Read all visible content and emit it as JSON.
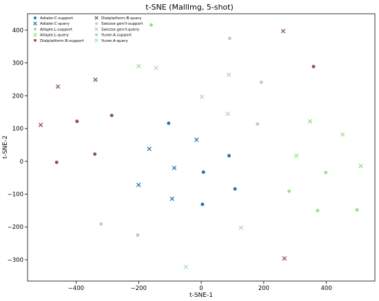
{
  "chart_data": {
    "type": "scatter",
    "title": "t-SNE (MallImg, 5-shot)",
    "xlabel": "t-SNE-1",
    "ylabel": "t-SNE-2",
    "xlim": [
      -555,
      555
    ],
    "ylim": [
      -365,
      450
    ],
    "xticks": [
      -400,
      -200,
      0,
      200,
      400
    ],
    "yticks": [
      -300,
      -200,
      -100,
      0,
      100,
      200,
      300,
      400
    ],
    "xtick_labels": [
      "−400",
      "−200",
      "0",
      "200",
      "400"
    ],
    "ytick_labels": [
      "−300",
      "−200",
      "−100",
      "0",
      "100",
      "200",
      "300",
      "400"
    ],
    "grid": false,
    "legend_position": "top-left",
    "series": [
      {
        "name": "Adialer.C-support",
        "marker": "circle",
        "color": "#1f77b4",
        "points": [
          [
            -104,
            116
          ],
          [
            89,
            17
          ],
          [
            7,
            -33
          ],
          [
            108,
            -84
          ],
          [
            4,
            -131
          ]
        ]
      },
      {
        "name": "Adialer.C-query",
        "marker": "x",
        "color": "#1f77b4",
        "points": [
          [
            -166,
            38
          ],
          [
            -15,
            66
          ],
          [
            -86,
            -20
          ],
          [
            -200,
            -72
          ],
          [
            -93,
            -114
          ]
        ]
      },
      {
        "name": "Allaple.L-support",
        "marker": "circle",
        "color": "#98df8a",
        "points": [
          [
            -160,
            416
          ],
          [
            398,
            -34
          ],
          [
            281,
            -91
          ],
          [
            372,
            -150
          ],
          [
            498,
            -148
          ]
        ]
      },
      {
        "name": "Allaple.L-query",
        "marker": "x",
        "color": "#98df8a",
        "points": [
          [
            -200,
            290
          ],
          [
            348,
            122
          ],
          [
            452,
            82
          ],
          [
            304,
            17
          ],
          [
            510,
            -14
          ]
        ]
      },
      {
        "name": "Dialplatform.B-support",
        "marker": "circle",
        "color": "#8c564b",
        "points": [
          [
            359,
            289
          ],
          [
            -286,
            140
          ],
          [
            -397,
            122
          ],
          [
            -340,
            22
          ],
          [
            -462,
            -3
          ]
        ]
      },
      {
        "name": "Dialplatform.B-query",
        "marker": "x",
        "color": "#8c564b",
        "points": [
          [
            262,
            397
          ],
          [
            -458,
            228
          ],
          [
            -338,
            249
          ],
          [
            -513,
            111
          ],
          [
            266,
            -296
          ]
        ]
      },
      {
        "name": "Swizzor.gen!I-support",
        "marker": "circle",
        "color": "#c7c7c7",
        "points": [
          [
            91,
            375
          ],
          [
            192,
            241
          ],
          [
            180,
            114
          ],
          [
            -320,
            -191
          ],
          [
            -203,
            -225
          ]
        ]
      },
      {
        "name": "Swizzor.gen!I-query",
        "marker": "x",
        "color": "#c7c7c7",
        "points": [
          [
            -144,
            285
          ],
          [
            88,
            264
          ],
          [
            2,
            197
          ],
          [
            85,
            145
          ],
          [
            127,
            -202
          ]
        ]
      },
      {
        "name": "Yuner.A-support",
        "marker": "circle",
        "color": "#98df8a",
        "points": []
      },
      {
        "name": "Yuner.A-query",
        "marker": "x",
        "color": "#9edae5",
        "points": [
          [
            -49,
            -322
          ]
        ]
      }
    ]
  }
}
